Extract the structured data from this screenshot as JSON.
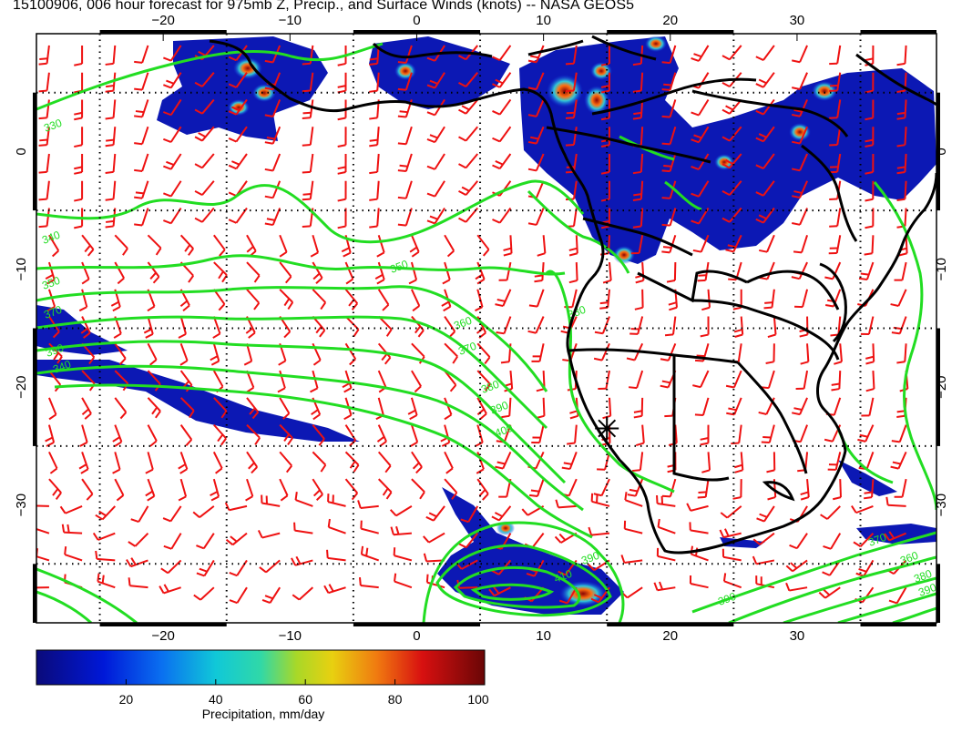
{
  "title": "15100906, 006 hour forecast for 975mb Z, Precip., and Surface Winds (knots) -- NASA GEOS5",
  "map": {
    "lon_range": [
      -30,
      41
    ],
    "lat_range": [
      -40,
      10
    ],
    "lon_ticks": [
      -20,
      -10,
      0,
      10,
      20,
      30
    ],
    "lat_ticks": [
      0,
      -10,
      -20,
      -30
    ],
    "lon_tick_labels": [
      "−20",
      "−10",
      "0",
      "10",
      "20",
      "30"
    ],
    "lat_tick_labels": [
      "0",
      "−10",
      "−20",
      "−30"
    ],
    "marker": {
      "lon": 15.0,
      "lat": -23.5,
      "symbol": "asterisk"
    },
    "colors": {
      "coast": "#000000",
      "contour": "#22dd22",
      "wind": "#ee1111",
      "grid": "#000000"
    }
  },
  "contours": {
    "color": "#22dd22",
    "labels": [
      "330",
      "340",
      "350",
      "370",
      "390",
      "340",
      "350",
      "360",
      "370",
      "380",
      "390",
      "400",
      "380",
      "390",
      "410",
      "390",
      "370",
      "360",
      "380",
      "390"
    ]
  },
  "colorbar": {
    "label": "Precipitation, mm/day",
    "ticks": [
      20,
      40,
      60,
      80,
      100
    ],
    "range": [
      0,
      100
    ]
  }
}
